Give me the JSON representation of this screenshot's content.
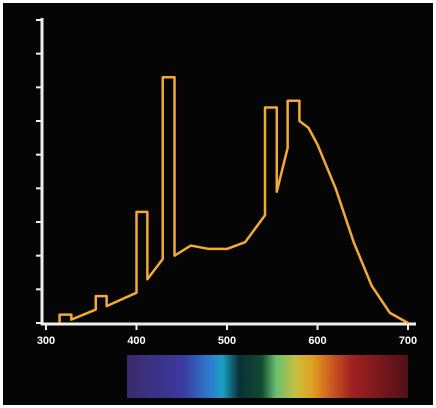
{
  "chart_data": {
    "type": "line",
    "x": [
      315,
      315,
      328,
      328,
      355,
      355,
      367,
      367,
      400,
      400,
      412,
      412,
      429,
      429,
      442,
      442,
      460,
      480,
      500,
      520,
      542,
      542,
      555,
      555,
      567,
      567,
      580,
      580,
      590,
      600,
      620,
      640,
      660,
      680,
      700
    ],
    "series": [
      {
        "color": "#f2a935",
        "values": [
          0,
          0.25,
          0.25,
          0.1,
          0.4,
          0.8,
          0.8,
          0.5,
          0.9,
          3.3,
          3.3,
          1.3,
          1.9,
          7.3,
          7.3,
          2.0,
          2.3,
          2.2,
          2.2,
          2.4,
          3.2,
          6.4,
          6.4,
          3.9,
          5.2,
          6.6,
          6.6,
          6.0,
          5.8,
          5.3,
          4.0,
          2.4,
          1.1,
          0.3,
          0
        ]
      }
    ],
    "xlim": [
      300,
      700
    ],
    "xticks": [
      300,
      400,
      500,
      600,
      700
    ],
    "ylim": [
      0,
      9
    ],
    "yticks": [
      0,
      1,
      2,
      3,
      4,
      5,
      6,
      7,
      8,
      9
    ]
  }
}
